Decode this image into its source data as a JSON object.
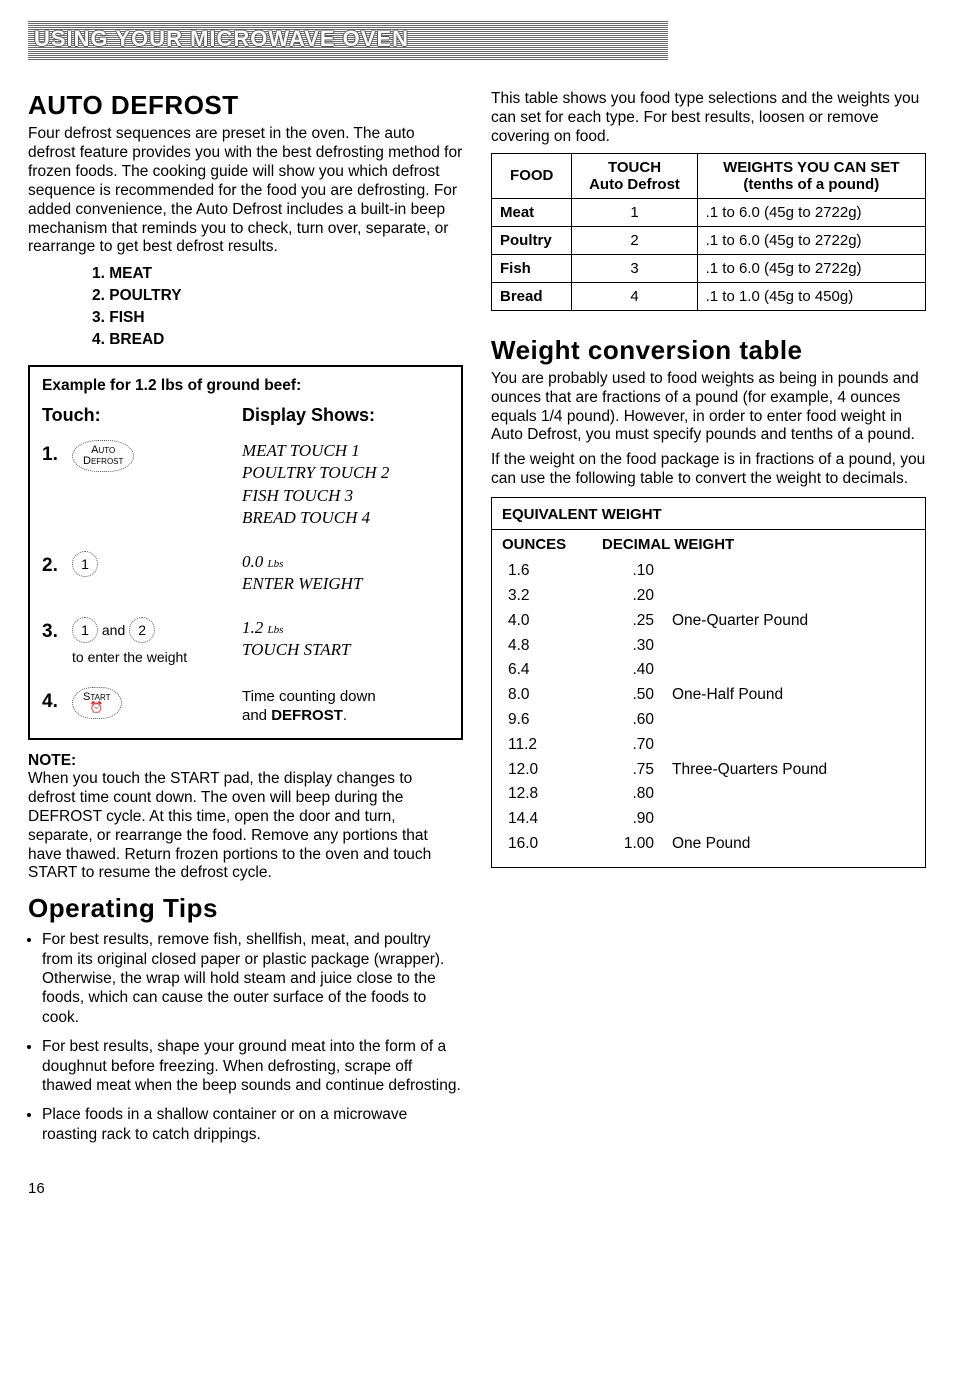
{
  "banner": "USING YOUR MICROWAVE OVEN",
  "pageNumber": "16",
  "left": {
    "title": "AUTO DEFROST",
    "intro": "Four defrost sequences are preset in the oven. The auto defrost feature provides you with the best defrosting method for frozen foods. The cooking guide will show you which defrost sequence is recommended for the food you are defrosting. For added convenience, the Auto Defrost includes a built-in beep mechanism that reminds you to check, turn over, separate, or rearrange to get best defrost results.",
    "foods": [
      "1.  MEAT",
      "2.  POULTRY",
      "3.  FISH",
      "4.  BREAD"
    ],
    "example": {
      "title": "Example for 1.2 lbs of ground beef:",
      "headerTouch": "Touch:",
      "headerDisplay": "Display Shows:",
      "steps": [
        {
          "n": "1.",
          "touchLabel": "Auto\nDefrost",
          "display": [
            "MEAT TOUCH 1",
            "POULTRY TOUCH 2",
            "FISH TOUCH 3",
            "BREAD TOUCH 4"
          ],
          "fancy": true
        },
        {
          "n": "2.",
          "touchLabel": "1",
          "display": [
            "0.0 Lbs",
            "ENTER WEIGHT"
          ],
          "fancy": true,
          "circle": true
        },
        {
          "n": "3.",
          "touchLabel": "1 and 2",
          "touchSub": "to enter the weight",
          "display": [
            "1.2 Lbs",
            "TOUCH START"
          ],
          "fancy": true,
          "twocircle": true
        },
        {
          "n": "4.",
          "touchLabel": "Start",
          "display": [
            "Time counting down",
            "and DEFROST."
          ],
          "fancy": false,
          "startpad": true
        }
      ]
    },
    "noteLabel": "NOTE:",
    "note": "When you touch the START pad, the display changes to defrost time count down. The oven will beep during the DEFROST cycle. At this time, open the door and turn, separate, or rearrange the food. Remove any portions that have thawed. Return frozen portions to the oven and touch START to resume the defrost cycle.",
    "tipsTitle": "Operating Tips",
    "tips": [
      "For best results, remove fish, shellfish, meat, and poultry from its original closed paper or plastic package (wrapper). Otherwise, the wrap will hold steam and juice close to the foods, which can cause the outer surface of the foods to cook.",
      "For best results, shape your ground meat into the form of a doughnut before freezing. When defrosting, scrape off thawed meat when the beep sounds and continue defrosting.",
      "Place foods in a shallow container or on a microwave roasting rack to catch drippings."
    ]
  },
  "right": {
    "tableIntro": "This table shows you food type selections and the weights you can set for each type. For best results, loosen or remove covering on food.",
    "foodTable": {
      "headers": [
        "FOOD",
        "TOUCH\nAuto Defrost",
        "WEIGHTS YOU CAN SET\n(tenths of a pound)"
      ],
      "rows": [
        [
          "Meat",
          "1",
          ".1 to 6.0 (45g to 2722g)"
        ],
        [
          "Poultry",
          "2",
          ".1 to 6.0 (45g to 2722g)"
        ],
        [
          "Fish",
          "3",
          ".1 to 6.0 (45g to 2722g)"
        ],
        [
          "Bread",
          "4",
          ".1 to 1.0 (45g to 450g)"
        ]
      ]
    },
    "convTitle": "Weight conversion table",
    "convText1": "You are probably used to food weights as being in pounds and ounces that are fractions of a pound (for example, 4 ounces equals 1/4 pound). However, in order to enter food weight in Auto Defrost, you must specify pounds and tenths of a pound.",
    "convText2": "If the weight on the food package is in fractions of a pound, you can use the following table to convert the weight to decimals.",
    "eqTitle": "EQUIVALENT WEIGHT",
    "eqHeaders": [
      "OUNCES",
      "DECIMAL WEIGHT"
    ],
    "eqRows": [
      [
        "1.6",
        ".10",
        ""
      ],
      [
        "3.2",
        ".20",
        ""
      ],
      [
        "4.0",
        ".25",
        "One-Quarter Pound"
      ],
      [
        "4.8",
        ".30",
        ""
      ],
      [
        "6.4",
        ".40",
        ""
      ],
      [
        "8.0",
        ".50",
        "One-Half Pound"
      ],
      [
        "9.6",
        ".60",
        ""
      ],
      [
        "11.2",
        ".70",
        ""
      ],
      [
        "12.0",
        ".75",
        "Three-Quarters Pound"
      ],
      [
        "12.8",
        ".80",
        ""
      ],
      [
        "14.4",
        ".90",
        ""
      ],
      [
        "16.0",
        "1.00",
        "One Pound"
      ]
    ]
  }
}
